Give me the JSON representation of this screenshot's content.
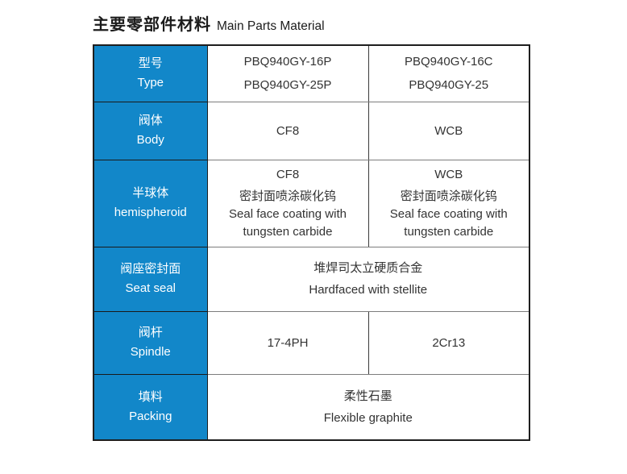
{
  "page": {
    "title_zh": "主要零部件材料",
    "title_en": "Main Parts Material"
  },
  "colors": {
    "header_blue": "#1287c9",
    "header_text": "#ffffff",
    "cell_text": "#333333",
    "outer_border": "#1e1e1e",
    "inner_horizontal_border": "#7d7d7d",
    "inner_vertical_border": "#3a3a3a"
  },
  "table": {
    "rows": [
      {
        "header": {
          "zh": "型号",
          "en": "Type"
        },
        "cells": [
          {
            "lines": [
              "PBQ940GY-16P",
              "PBQ940GY-25P"
            ]
          },
          {
            "lines": [
              "PBQ940GY-16C",
              "PBQ940GY-25"
            ]
          }
        ]
      },
      {
        "header": {
          "zh": "阀体",
          "en": "Body"
        },
        "cells": [
          {
            "lines": [
              "CF8"
            ]
          },
          {
            "lines": [
              "WCB"
            ]
          }
        ]
      },
      {
        "header": {
          "zh": "半球体",
          "en": "hemispheroid"
        },
        "cells": [
          {
            "lines": [
              "CF8",
              "密封面喷涂碳化钨",
              "Seal face coating with",
              "tungsten carbide"
            ]
          },
          {
            "lines": [
              "WCB",
              "密封面喷涂碳化钨",
              "Seal face coating with",
              "tungsten carbide"
            ]
          }
        ]
      },
      {
        "header": {
          "zh": "阀座密封面",
          "en": "Seat seal"
        },
        "merged": true,
        "cells": [
          {
            "lines": [
              "堆焊司太立硬质合金",
              "Hardfaced with stellite"
            ]
          }
        ]
      },
      {
        "header": {
          "zh": "阀杆",
          "en": "Spindle"
        },
        "cells": [
          {
            "lines": [
              "17-4PH"
            ]
          },
          {
            "lines": [
              "2Cr13"
            ]
          }
        ]
      },
      {
        "header": {
          "zh": "填料",
          "en": "Packing"
        },
        "merged": true,
        "cells": [
          {
            "lines": [
              "柔性石墨",
              "Flexible graphite"
            ]
          }
        ]
      }
    ]
  }
}
